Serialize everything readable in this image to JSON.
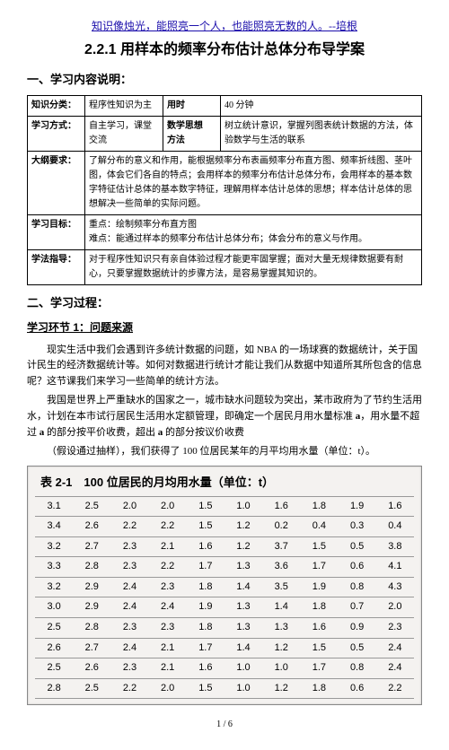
{
  "topLink": "知识像烛光，能照亮一个人，也能照亮无数的人。--培根",
  "title": "2.2.1 用样本的频率分布估计总体分布导学案",
  "sec1": "一、学习内容说明：",
  "info": {
    "r1c1": "知识分类：",
    "r1c2": "程序性知识为主",
    "r1c3": "用时",
    "r1c4": "40 分钟",
    "r2c1": "学习方式：",
    "r2c2": "自主学习，课堂交流",
    "r2c3": "数学思想\n方法",
    "r2c4": "树立统计意识，掌握列图表统计数据的方法，体验数学与生活的联系",
    "r3c1": "大纲要求：",
    "r3c2": "了解分布的意义和作用，能根据频率分布表画频率分布直方图、频率折线图、茎叶图，体会它们各自的特点；会用样本的频率分布估计总体分布，会用样本的基本数字特征估计总体的基本数字特征，理解用样本估计总体的思想；样本估计总体的思想解决一些简单的实际问题。",
    "r4c1": "学习目标：",
    "r4c2a": "重点：绘制频率分布直方图",
    "r4c2b": "难点：能通过样本的频率分布估计总体分布；体会分布的意义与作用。",
    "r5c1": "学法指导：",
    "r5c2": "对于程序性知识只有亲自体验过程才能更牢固掌握；面对大量无规律数据要有耐心，只要掌握数据统计的步骤方法，是容易掌握其知识的。"
  },
  "sec2": "二、学习过程：",
  "sec21": "学习环节 1：问题来源",
  "p1": "现实生活中我们会遇到许多统计数据的问题，如 NBA 的一场球赛的数据统计，关于国计民生的经济数据统计等。如何对数据进行统计才能让我们从数据中知道所其所包含的信息呢？这节课我们来学习一些简单的统计方法。",
  "p2a": "我国是世界上严重缺水的国家之一，城市缺水问题较为突出，某市政府为了节约生活用水，计划在本市试行居民生活用水定额管理，即确定一个居民月用水量标准 ",
  "p2b": "a",
  "p2c": "，用水量不超过 ",
  "p2d": "a",
  "p2e": " 的部分按平价收费，超出 ",
  "p2f": "a",
  "p2g": " 的部分按议价收费",
  "p3": "（假设通过抽样），我们获得了 100 位居民某年的月平均用水量（单位：t）。",
  "tableTitle": "表 2-1　100 位居民的月均用水量（单位：t）",
  "rows": [
    [
      "3.1",
      "2.5",
      "2.0",
      "2.0",
      "1.5",
      "1.0",
      "1.6",
      "1.8",
      "1.9",
      "1.6"
    ],
    [
      "3.4",
      "2.6",
      "2.2",
      "2.2",
      "1.5",
      "1.2",
      "0.2",
      "0.4",
      "0.3",
      "0.4"
    ],
    [
      "3.2",
      "2.7",
      "2.3",
      "2.1",
      "1.6",
      "1.2",
      "3.7",
      "1.5",
      "0.5",
      "3.8"
    ],
    [
      "3.3",
      "2.8",
      "2.3",
      "2.2",
      "1.7",
      "1.3",
      "3.6",
      "1.7",
      "0.6",
      "4.1"
    ],
    [
      "3.2",
      "2.9",
      "2.4",
      "2.3",
      "1.8",
      "1.4",
      "3.5",
      "1.9",
      "0.8",
      "4.3"
    ],
    [
      "3.0",
      "2.9",
      "2.4",
      "2.4",
      "1.9",
      "1.3",
      "1.4",
      "1.8",
      "0.7",
      "2.0"
    ],
    [
      "2.5",
      "2.8",
      "2.3",
      "2.3",
      "1.8",
      "1.3",
      "1.3",
      "1.6",
      "0.9",
      "2.3"
    ],
    [
      "2.6",
      "2.7",
      "2.4",
      "2.1",
      "1.7",
      "1.4",
      "1.2",
      "1.5",
      "0.5",
      "2.4"
    ],
    [
      "2.5",
      "2.6",
      "2.3",
      "2.1",
      "1.6",
      "1.0",
      "1.0",
      "1.7",
      "0.8",
      "2.4"
    ],
    [
      "2.8",
      "2.5",
      "2.2",
      "2.0",
      "1.5",
      "1.0",
      "1.2",
      "1.8",
      "0.6",
      "2.2"
    ]
  ],
  "pageNum": "1 / 6"
}
